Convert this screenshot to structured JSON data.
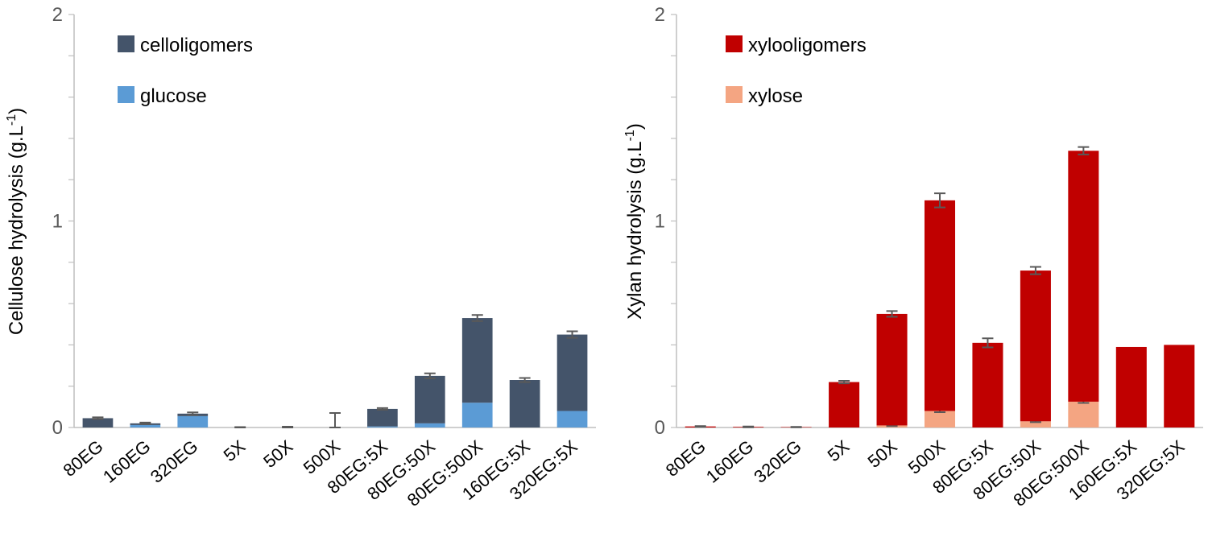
{
  "chart_data": [
    {
      "type": "bar",
      "stacked": true,
      "id": "cellulose",
      "xlabel": "",
      "ylabel": "Cellulose hydrolysis (g.L",
      "ylabel_superscript": "-1",
      "ylabel_close": ")",
      "ylim": [
        0,
        2
      ],
      "yticks": [
        "0",
        "1",
        "2"
      ],
      "legend_position": "top-left",
      "categories": [
        "80EG",
        "160EG",
        "320EG",
        "5X",
        "50X",
        "500X",
        "80EG:5X",
        "80EG:50X",
        "80EG:500X",
        "160EG:5X",
        "320EG:5X"
      ],
      "series": [
        {
          "name": "glucose",
          "color": "#5b9bd5",
          "values": [
            0.0,
            0.012,
            0.055,
            0.0,
            0.0,
            0.0,
            0.005,
            0.02,
            0.12,
            0.0,
            0.08
          ],
          "errors": [
            0,
            0,
            0,
            0,
            0,
            0,
            0,
            0,
            0,
            0,
            0
          ]
        },
        {
          "name": "celloligomers",
          "color": "#44546a",
          "values": [
            0.045,
            0.008,
            0.012,
            0.0,
            0.0,
            0.0,
            0.085,
            0.23,
            0.41,
            0.23,
            0.37
          ],
          "errors": [
            0.004,
            0.004,
            0.006,
            0.002,
            0.004,
            0.07,
            0.004,
            0.012,
            0.015,
            0.01,
            0.016
          ]
        }
      ]
    },
    {
      "type": "bar",
      "stacked": true,
      "id": "xylan",
      "xlabel": "",
      "ylabel": "Xylan hydrolysis (g.L",
      "ylabel_superscript": "-1",
      "ylabel_close": ")",
      "ylim": [
        0,
        2
      ],
      "yticks": [
        "0",
        "1",
        "2"
      ],
      "legend_position": "top-left",
      "categories": [
        "80EG",
        "160EG",
        "320EG",
        "5X",
        "50X",
        "500X",
        "80EG:5X",
        "80EG:50X",
        "80EG:500X",
        "160EG:5X",
        "320EG:5X"
      ],
      "series": [
        {
          "name": "xylose",
          "color": "#f4a582",
          "values": [
            0.0,
            0.0,
            0.0,
            0.0,
            0.01,
            0.08,
            0.0,
            0.03,
            0.125,
            0.0,
            0.0
          ],
          "errors": [
            0,
            0,
            0,
            0,
            0.003,
            0.006,
            0,
            0.004,
            0.006,
            0,
            0
          ]
        },
        {
          "name": "xylooligomers",
          "color": "#c00000",
          "values": [
            0.005,
            0.003,
            0.002,
            0.22,
            0.54,
            1.02,
            0.41,
            0.73,
            1.215,
            0.39,
            0.4
          ],
          "errors": [
            0.002,
            0.002,
            0.001,
            0.006,
            0.014,
            0.034,
            0.022,
            0.018,
            0.018,
            0,
            0
          ]
        }
      ]
    }
  ]
}
